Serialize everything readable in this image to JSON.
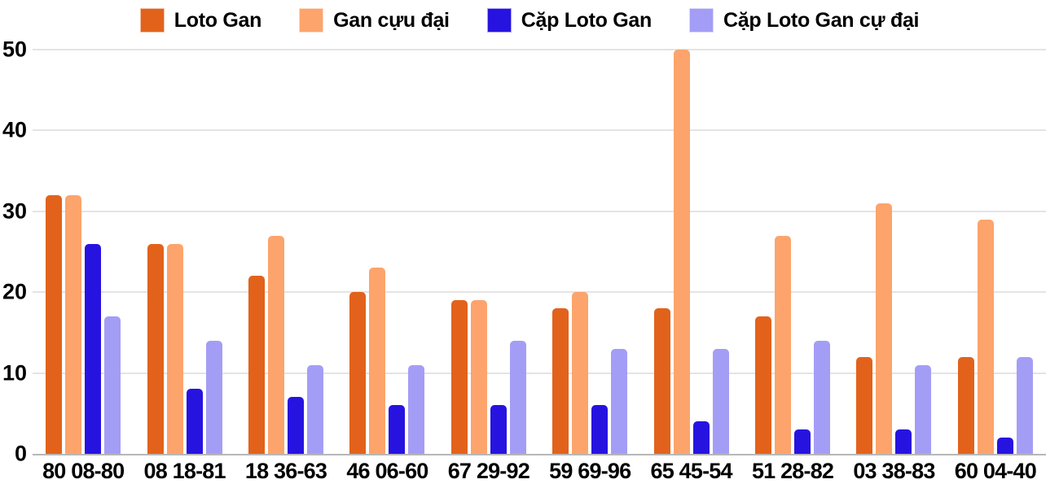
{
  "chart_data": {
    "type": "bar",
    "title": "",
    "xlabel": "",
    "ylabel": "",
    "categories": [
      "80 08-80",
      "08 18-81",
      "18 36-63",
      "46 06-60",
      "67 29-92",
      "59 69-96",
      "65 45-54",
      "51 28-82",
      "03 38-83",
      "60 04-40"
    ],
    "series": [
      {
        "name": "Loto Gan",
        "color": "#e2621b",
        "values": [
          32,
          26,
          22,
          20,
          19,
          18,
          18,
          17,
          12,
          12
        ]
      },
      {
        "name": "Gan cựu đại",
        "color": "#fca46c",
        "values": [
          32,
          26,
          27,
          23,
          19,
          20,
          50,
          27,
          31,
          29
        ]
      },
      {
        "name": "Cặp Loto Gan",
        "color": "#2713e0",
        "values": [
          26,
          8,
          7,
          6,
          6,
          6,
          4,
          3,
          3,
          2
        ]
      },
      {
        "name": "Cặp Loto Gan cự đại",
        "color": "#a49df6",
        "values": [
          17,
          14,
          11,
          11,
          14,
          13,
          13,
          14,
          11,
          12
        ]
      }
    ],
    "ylim": [
      0,
      50
    ],
    "yticks": [
      0,
      10,
      20,
      30,
      40,
      50
    ],
    "grid": true,
    "legend_position": "top"
  },
  "colors": {
    "background": "#ffffff",
    "gridline": "#e4e4e4",
    "axis_line": "#b7b7b7",
    "text": "#000000"
  }
}
